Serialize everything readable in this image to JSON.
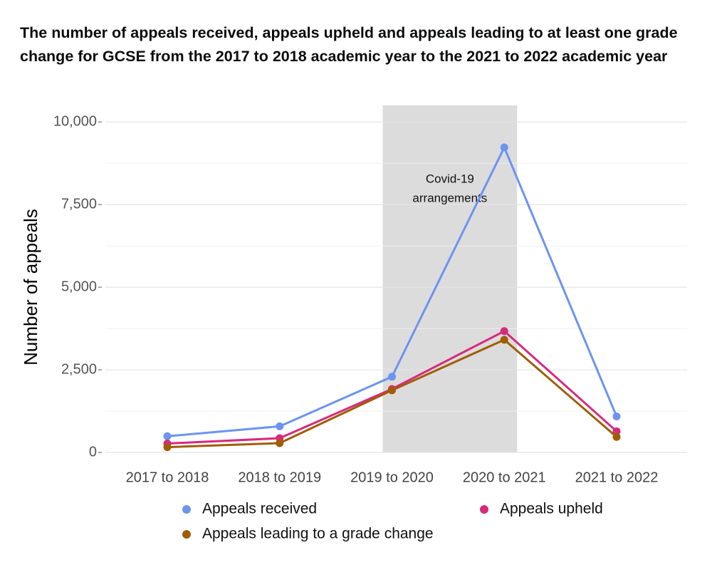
{
  "chart_data": {
    "type": "line",
    "title": "The number of appeals received, appeals upheld and appeals leading to at least one grade change for GCSE from the 2017 to 2018 academic year to the 2021 to 2022 academic year",
    "y_label": "Number of appeals",
    "categories": [
      "2017 to 2018",
      "2018 to 2019",
      "2019 to 2020",
      "2020 to 2021",
      "2021 to 2022"
    ],
    "series": [
      {
        "name": "Appeals received",
        "color": "#6c94f0",
        "values": [
          490,
          790,
          2290,
          9230,
          1090
        ]
      },
      {
        "name": "Appeals upheld",
        "color": "#d62a7d",
        "values": [
          270,
          430,
          1920,
          3670,
          640
        ]
      },
      {
        "name": "Appeals leading to a grade change",
        "color": "#a05d06",
        "values": [
          160,
          280,
          1880,
          3410,
          470
        ]
      }
    ],
    "annotation": [
      "Covid-19",
      "arrangements"
    ],
    "ylim": [
      0,
      10500
    ],
    "yticks": [
      {
        "value": 0,
        "label": "0"
      },
      {
        "value": 2500,
        "label": "2,500"
      },
      {
        "value": 5000,
        "label": "5,000"
      },
      {
        "value": 7500,
        "label": "7,500"
      },
      {
        "value": 10000,
        "label": "10,000"
      }
    ],
    "minor_yticks": [
      1250,
      3750,
      6250,
      8750
    ],
    "grid": true
  }
}
